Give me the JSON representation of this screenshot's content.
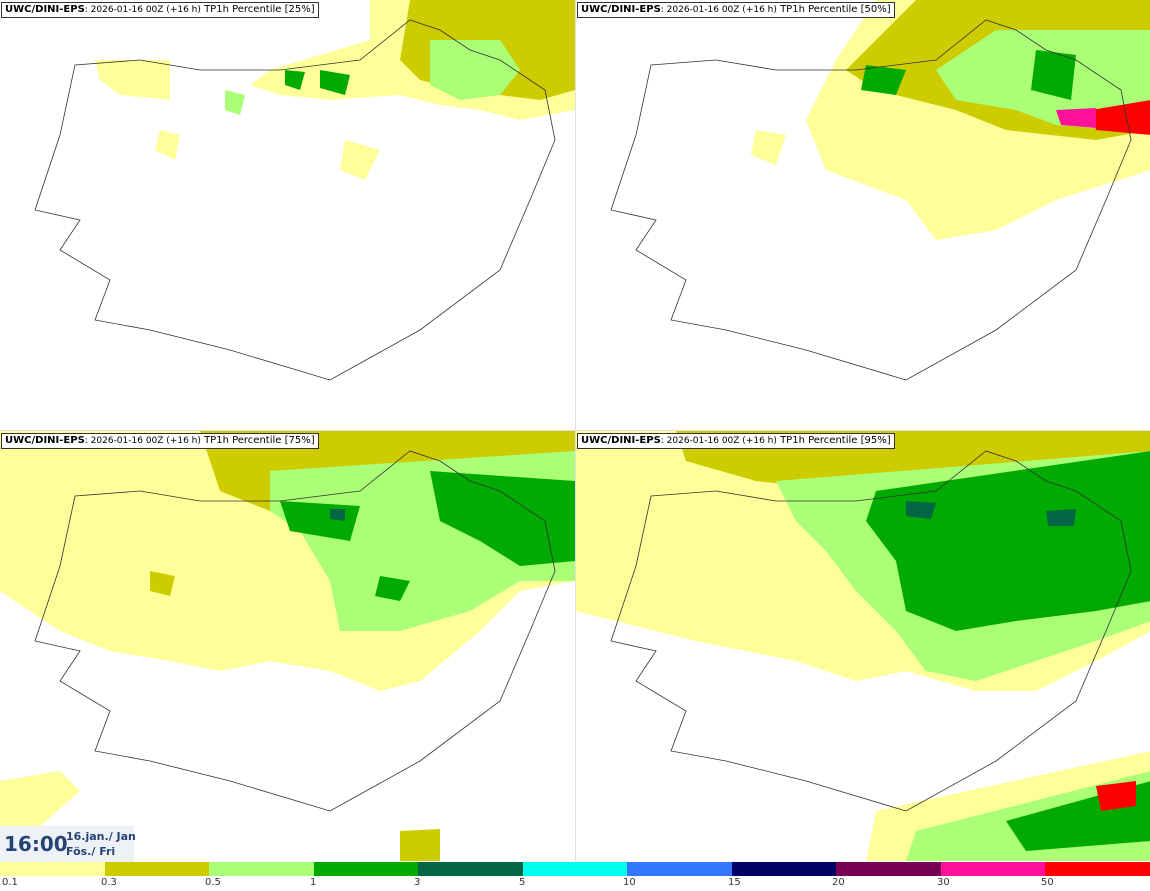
{
  "panels": [
    {
      "model": "UWC/DINI-EPS",
      "run": ": 2026-01-16 00Z (+16 h)",
      "label": " TP1h Percentile [25%]"
    },
    {
      "model": "UWC/DINI-EPS",
      "run": ": 2026-01-16 00Z (+16 h)",
      "label": " TP1h Percentile [50%]"
    },
    {
      "model": "UWC/DINI-EPS",
      "run": ": 2026-01-16 00Z (+16 h)",
      "label": " TP1h Percentile [75%]"
    },
    {
      "model": "UWC/DINI-EPS",
      "run": ": 2026-01-16 00Z (+16 h)",
      "label": " TP1h Percentile [95%]"
    }
  ],
  "time": {
    "hour": "16:00",
    "date": "16.jan./ Jan",
    "day": "Fös./ Fri"
  },
  "colorbar": {
    "colors": [
      "#ffff99",
      "#cccc00",
      "#aaff77",
      "#00aa00",
      "#006644",
      "#00ffee",
      "#3377ff",
      "#000066",
      "#770055",
      "#ff1199",
      "#ff0000"
    ],
    "labels": [
      "0.1",
      "0.3",
      "0.5",
      "1",
      "3",
      "5",
      "10",
      "15",
      "20",
      "30",
      "50"
    ]
  },
  "colors": {
    "light": "#ffff99",
    "olive": "#cccc00",
    "lightgreen": "#aaff77",
    "green": "#00aa00",
    "dark": "#006644",
    "coast": "#333333"
  }
}
